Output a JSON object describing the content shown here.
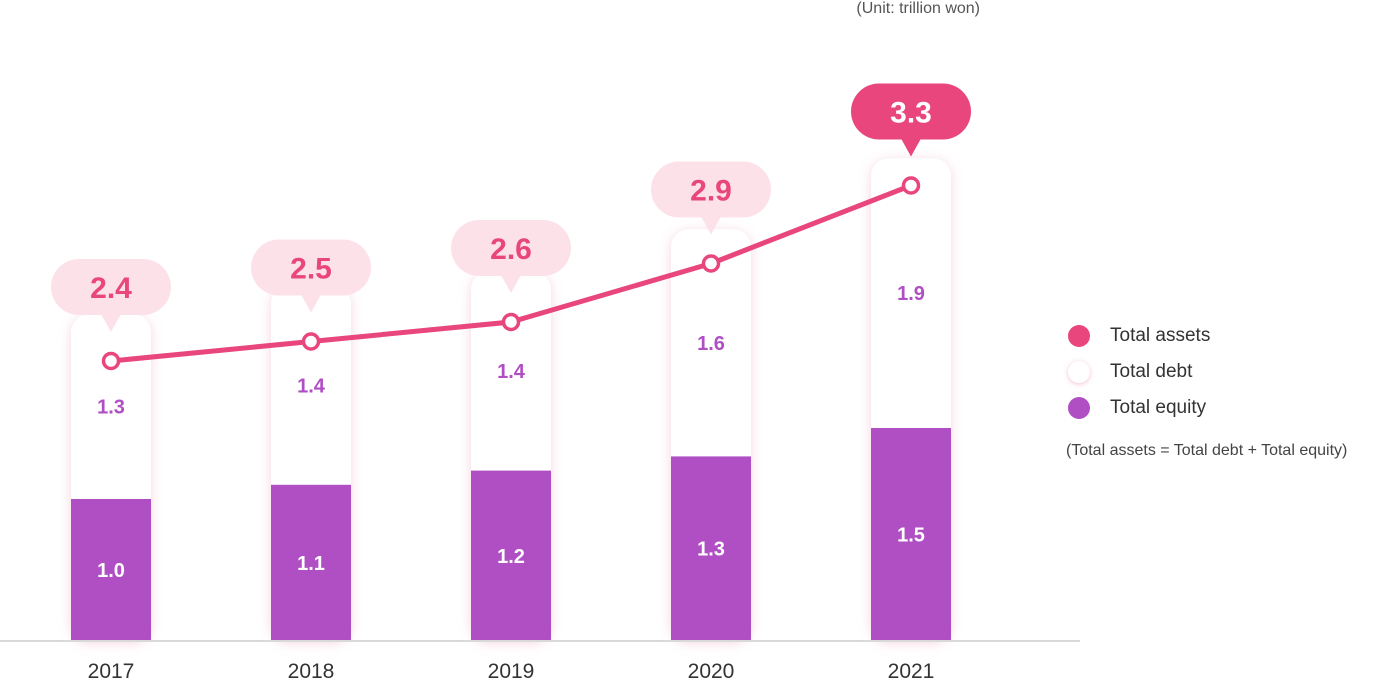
{
  "unit_note": "(Unit: trillion won)",
  "formula_note": "(Total assets = Total debt + Total equity)",
  "legend": [
    {
      "label": "Total assets",
      "color": "#e8467c",
      "icon": "filled-circle"
    },
    {
      "label": "Total debt",
      "color": "#ffffff",
      "icon": "white-circle"
    },
    {
      "label": "Total equity",
      "color": "#b04fc4",
      "icon": "filled-circle"
    }
  ],
  "colors": {
    "assets": "#e8467c",
    "assets_bubble_light": "#fde1e9",
    "equity": "#b04fc4",
    "debt": "#ffffff",
    "axis": "#d9d9d9"
  },
  "chart_data": {
    "type": "bar",
    "categories": [
      "2017",
      "2018",
      "2019",
      "2020",
      "2021"
    ],
    "series": [
      {
        "name": "Total equity",
        "kind": "stacked-bar",
        "values": [
          1.0,
          1.1,
          1.2,
          1.3,
          1.5
        ]
      },
      {
        "name": "Total debt",
        "kind": "stacked-bar",
        "values": [
          1.3,
          1.4,
          1.4,
          1.6,
          1.9
        ]
      },
      {
        "name": "Total assets",
        "kind": "line",
        "values": [
          2.4,
          2.5,
          2.6,
          2.9,
          3.3
        ]
      }
    ],
    "assets_labels": [
      "2.4",
      "2.5",
      "2.6",
      "2.9",
      "3.3"
    ],
    "equity_labels": [
      "1.0",
      "1.1",
      "1.2",
      "1.3",
      "1.5"
    ],
    "debt_labels": [
      "1.3",
      "1.4",
      "1.4",
      "1.6",
      "1.9"
    ],
    "highlight_last": true,
    "grid": false
  }
}
